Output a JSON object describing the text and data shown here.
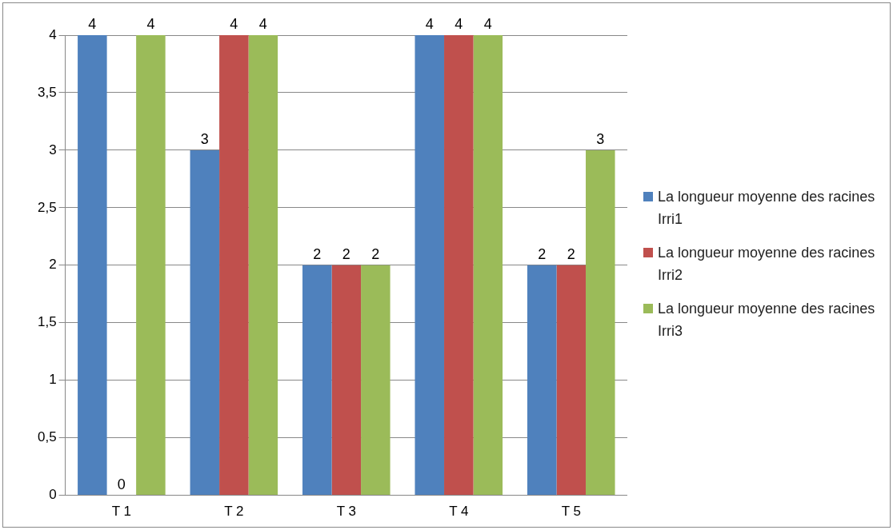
{
  "chart_data": {
    "type": "bar",
    "categories": [
      "T 1",
      "T 2",
      "T 3",
      "T 4",
      "T 5"
    ],
    "series": [
      {
        "name": "La longueur moyenne des racines Irri1",
        "color": "#4f81bd",
        "values": [
          4,
          3,
          2,
          4,
          2
        ]
      },
      {
        "name": "La longueur moyenne des racines Irri2",
        "color": "#c0504d",
        "values": [
          0,
          4,
          2,
          4,
          2
        ]
      },
      {
        "name": "La longueur moyenne des racines Irri3",
        "color": "#9bbb59",
        "values": [
          4,
          4,
          2,
          4,
          3
        ]
      }
    ],
    "ylim": [
      0,
      4
    ],
    "yticks": [
      0,
      {
        "value": 0.5,
        "label": "0,5"
      },
      1,
      {
        "value": 1.5,
        "label": "1,5"
      },
      2,
      {
        "value": 2.5,
        "label": "2,5"
      },
      3,
      {
        "value": 3.5,
        "label": "3,5"
      },
      4
    ],
    "grid": "y",
    "legend": "right",
    "data_labels": true
  }
}
